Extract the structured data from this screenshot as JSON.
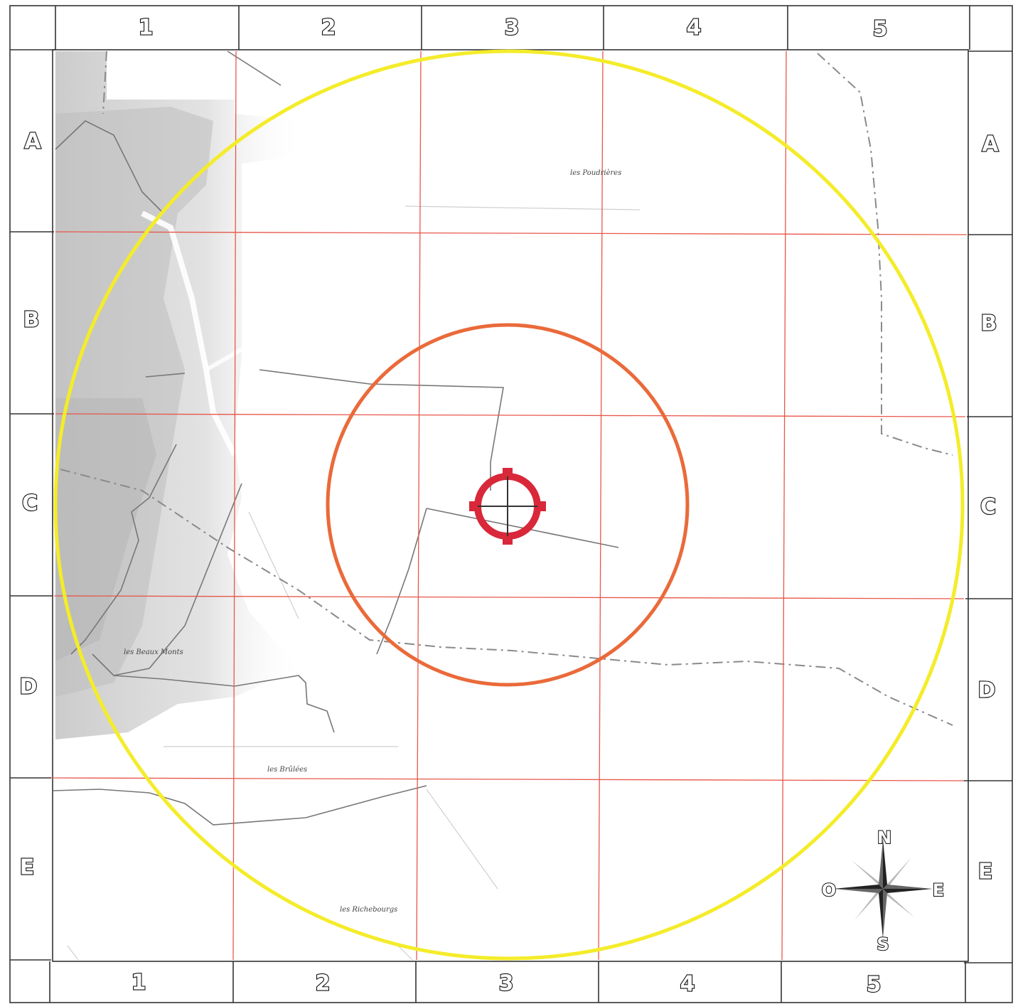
{
  "grid": {
    "columns": [
      "1",
      "2",
      "3",
      "4",
      "5"
    ],
    "rows": [
      "A",
      "B",
      "C",
      "D",
      "E"
    ]
  },
  "places": [
    {
      "name": "les Poudrières"
    },
    {
      "name": "les Beaux Monts"
    },
    {
      "name": "les Brûlées"
    },
    {
      "name": "les Richebourgs"
    }
  ],
  "compass": {
    "north": "N",
    "east": "E",
    "south": "S",
    "west": "O"
  },
  "colors": {
    "outer_ring": "#f4ec2a",
    "inner_ring": "#ea6a3a",
    "target": "#d8283a",
    "grid_lines": "#e8574a",
    "frame": "#333333",
    "relief": "#c8c8c8"
  },
  "icons": {
    "target": "crosshair-target-icon",
    "compass": "compass-rose-icon"
  }
}
